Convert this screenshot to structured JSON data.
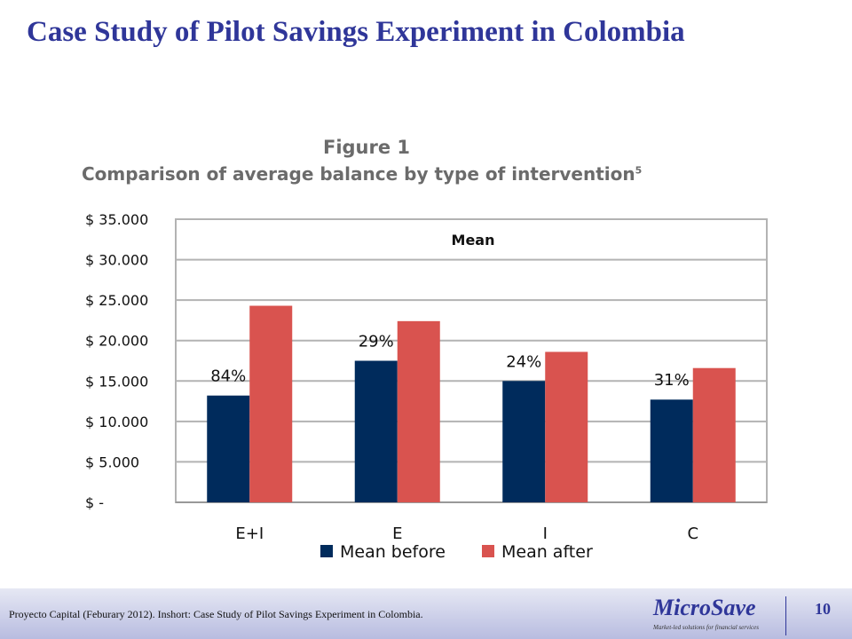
{
  "slide": {
    "title": "Case Study of Pilot Savings Experiment  in Colombia",
    "page_number": "10"
  },
  "figure": {
    "number_label": "Figure 1",
    "caption": "Comparison of average balance by type of intervention",
    "footnote_marker": "5"
  },
  "footer": {
    "source_note": "Proyecto Capital (Feburary 2012). Inshort: Case Study of Pilot Savings Experiment in Colombia.",
    "logo_name": "MicroSave",
    "logo_tagline": "Market-led solutions for financial services"
  },
  "chart_data": {
    "type": "bar",
    "title": "Mean",
    "categories": [
      "E+I",
      "E",
      "I",
      "C"
    ],
    "series": [
      {
        "name": "Mean before",
        "color": "#002b5c",
        "values": [
          13200,
          17500,
          15000,
          12700
        ]
      },
      {
        "name": "Mean after",
        "color": "#d9534f",
        "values": [
          24300,
          22400,
          18600,
          16600
        ]
      }
    ],
    "annotations": [
      "84%",
      "29%",
      "24%",
      "31%"
    ],
    "y_tick_labels": [
      "$ -",
      "$ 5.000",
      "$ 10.000",
      "$ 15.000",
      "$ 20.000",
      "$ 25.000",
      "$ 30.000",
      "$ 35.000"
    ],
    "ylim": [
      0,
      35000
    ],
    "grid": true,
    "legend_position": "bottom"
  }
}
